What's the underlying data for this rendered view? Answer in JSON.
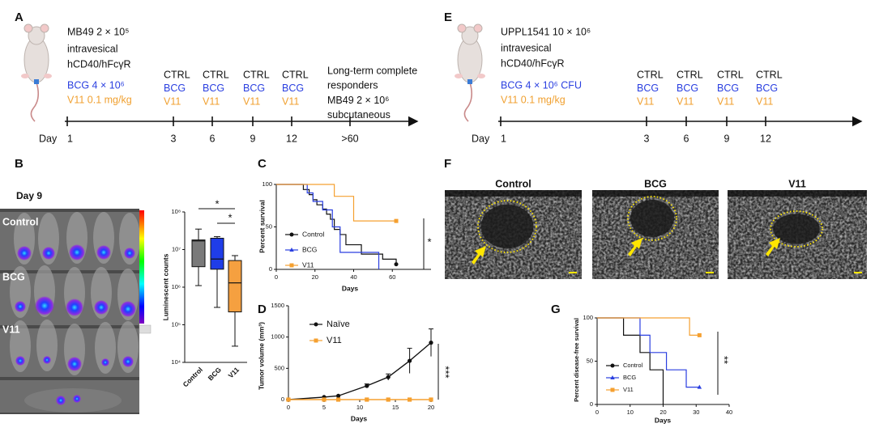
{
  "timelines": [
    {
      "panel": "A",
      "notes": [
        {
          "text": "MB49 2 × 10⁵",
          "color": "#111111"
        },
        {
          "text": "intravesical",
          "color": "#111111"
        },
        {
          "text": "hCD40/hFcγR",
          "color": "#111111"
        },
        {
          "text": "BCG 4 × 10⁶",
          "color": "#2a3fe0"
        },
        {
          "text": "V11 0.1 mg/kg",
          "color": "#f0a030"
        }
      ],
      "day_label": "Day",
      "group_colors": [
        "#111111",
        "#2a3fe0",
        "#f0a030"
      ],
      "days": [
        {
          "day": "1"
        },
        {
          "day": "3",
          "groups": [
            "CTRL",
            "BCG",
            "V11"
          ]
        },
        {
          "day": "6",
          "groups": [
            "CTRL",
            "BCG",
            "V11"
          ]
        },
        {
          "day": "9",
          "groups": [
            "CTRL",
            "BCG",
            "V11"
          ]
        },
        {
          "day": "12",
          "groups": [
            "CTRL",
            "BCG",
            "V11"
          ]
        },
        {
          "day": ">60",
          "notes": [
            "Long-term complete",
            "responders",
            "MB49 2 × 10⁶",
            "subcutaneous"
          ]
        }
      ]
    },
    {
      "panel": "E",
      "notes": [
        {
          "text": "UPPL1541 10 × 10⁶",
          "color": "#111111"
        },
        {
          "text": "intravesical",
          "color": "#111111"
        },
        {
          "text": "hCD40/hFcγR",
          "color": "#111111"
        },
        {
          "text": "BCG 4 × 10⁶ CFU",
          "color": "#2a3fe0"
        },
        {
          "text": "V11 0.1 mg/kg",
          "color": "#f0a030"
        }
      ],
      "day_label": "Day",
      "group_colors": [
        "#111111",
        "#2a3fe0",
        "#f0a030"
      ],
      "days": [
        {
          "day": "1"
        },
        {
          "day": "3",
          "groups": [
            "CTRL",
            "BCG",
            "V11"
          ]
        },
        {
          "day": "6",
          "groups": [
            "CTRL",
            "BCG",
            "V11"
          ]
        },
        {
          "day": "9",
          "groups": [
            "CTRL",
            "BCG",
            "V11"
          ]
        },
        {
          "day": "12",
          "groups": [
            "CTRL",
            "BCG",
            "V11"
          ]
        }
      ]
    }
  ],
  "imaging": {
    "panel": "B",
    "title": "Day 9",
    "rows": [
      "Control",
      "BCG",
      "V11"
    ]
  },
  "ultrasound": {
    "panel": "F",
    "images": [
      "Control",
      "BCG",
      "V11"
    ]
  },
  "chart_data": [
    {
      "type": "box",
      "ylabel": "Luminescent counts",
      "categories": [
        "Control",
        "BCG",
        "V11"
      ],
      "values": [
        [
          1100000,
          3500000,
          17000000,
          18000000,
          35000000
        ],
        [
          290000,
          3000000,
          5600000,
          20000000,
          22000000
        ],
        [
          27000,
          220000,
          1300000,
          5100000,
          6900000
        ]
      ],
      "colors": [
        "#7a7a7a",
        "#1f3de8",
        "#f5a040"
      ],
      "log_scale": true,
      "ylim": [
        10000,
        100000000
      ],
      "yticks": [
        {
          "value": 10000,
          "label": "10⁴"
        },
        {
          "value": 100000,
          "label": "10⁵"
        },
        {
          "value": 1000000,
          "label": "10⁶"
        },
        {
          "value": 10000000,
          "label": "10⁷"
        },
        {
          "value": 100000000,
          "label": "10⁸"
        }
      ],
      "annotations": [
        "*",
        "*"
      ]
    },
    {
      "type": "survival",
      "panel": "C",
      "xlabel": "Days",
      "ylabel": "Percent survival",
      "xlim": [
        0,
        80
      ],
      "ylim": [
        0,
        100
      ],
      "xticks": [
        0,
        20,
        40,
        60
      ],
      "yticks": [
        0,
        50,
        100
      ],
      "series": [
        {
          "name": "Control",
          "color": "#111111",
          "marker": "circle",
          "end_marker": true,
          "x": [
            0,
            14,
            17,
            19,
            21,
            24,
            26,
            28,
            30,
            33,
            36,
            44,
            55,
            62
          ],
          "values": [
            100,
            94,
            88,
            82,
            76,
            71,
            65,
            59,
            47,
            41,
            29,
            18,
            12,
            6
          ]
        },
        {
          "name": "BCG",
          "color": "#2a3fe0",
          "marker": "triangle",
          "end_marker": false,
          "x": [
            0,
            16,
            19,
            24,
            29,
            33,
            53
          ],
          "values": [
            100,
            90,
            80,
            70,
            50,
            20,
            0
          ]
        },
        {
          "name": "V11",
          "color": "#f5a030",
          "marker": "square",
          "end_marker": true,
          "x": [
            0,
            30,
            40,
            62
          ],
          "values": [
            100,
            86,
            57,
            57
          ]
        }
      ],
      "annotations": [
        "*"
      ]
    },
    {
      "type": "line",
      "panel": "D",
      "xlabel": "Days",
      "ylabel": "Tumor volume (mm³)",
      "xlim": [
        0,
        20
      ],
      "ylim": [
        0,
        1500
      ],
      "xticks": [
        0,
        5,
        10,
        15,
        20
      ],
      "yticks": [
        0,
        500,
        1000,
        1500
      ],
      "x": [
        0,
        5,
        7,
        11,
        14,
        17,
        20
      ],
      "series": [
        {
          "name": "Naïve",
          "color": "#111111",
          "marker": "circle",
          "values": [
            0,
            40,
            60,
            220,
            360,
            620,
            910
          ],
          "errors": [
            0,
            0,
            0,
            30,
            50,
            200,
            220
          ]
        },
        {
          "name": "V11",
          "color": "#f5a030",
          "marker": "square",
          "values": [
            0,
            0,
            0,
            0,
            0,
            0,
            0
          ],
          "errors": [
            0,
            0,
            0,
            0,
            0,
            0,
            0
          ]
        }
      ],
      "annotations": [
        "***"
      ]
    },
    {
      "type": "survival",
      "panel": "G",
      "xlabel": "Days",
      "ylabel": "Percent disease-free survival",
      "xlim": [
        0,
        40
      ],
      "ylim": [
        0,
        100
      ],
      "xticks": [
        0,
        10,
        20,
        30,
        40
      ],
      "yticks": [
        0,
        50,
        100
      ],
      "series": [
        {
          "name": "Control",
          "color": "#111111",
          "marker": "circle",
          "end_marker": false,
          "x": [
            0,
            8,
            13,
            16,
            20
          ],
          "values": [
            100,
            80,
            60,
            40,
            0
          ]
        },
        {
          "name": "BCG",
          "color": "#2a3fe0",
          "marker": "triangle",
          "end_marker": true,
          "x": [
            0,
            13,
            16,
            21,
            27,
            31
          ],
          "values": [
            100,
            80,
            60,
            40,
            20,
            20
          ]
        },
        {
          "name": "V11",
          "color": "#f5a030",
          "marker": "square",
          "end_marker": true,
          "x": [
            0,
            28,
            31
          ],
          "values": [
            100,
            80,
            80
          ]
        }
      ],
      "annotations": [
        "**"
      ]
    }
  ]
}
